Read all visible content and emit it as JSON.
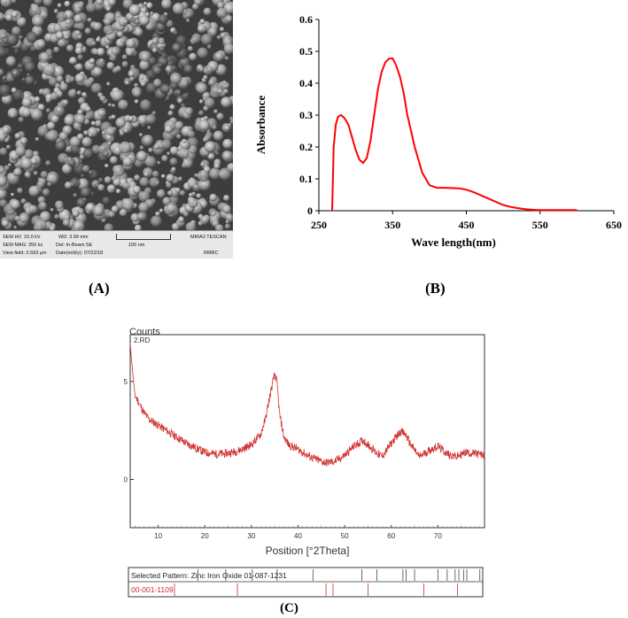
{
  "panels": {
    "a": "(A)",
    "b": "(B)",
    "c": "(C)"
  },
  "sem": {
    "hv": "SEM HV: 15.0 kV",
    "wd": "WD: 3.99 mm",
    "mag": "SEM MAG: 350 kx",
    "det": "Det: In-Beam SE",
    "scale": "100 nm",
    "view": "View field: 0.593 µm",
    "date": "Date(m/d/y): 07/22/18",
    "instrument": "MIRA3 TESCAN",
    "lab": "RMRC"
  },
  "chart_data": [
    {
      "type": "line",
      "id": "uv-vis",
      "xlabel": "Wave length(nm)",
      "ylabel": "Absorbance",
      "xlim": [
        250,
        650
      ],
      "ylim": [
        0,
        0.6
      ],
      "xticks": [
        "250",
        "350",
        "450",
        "550",
        "650"
      ],
      "yticks": [
        "0",
        "0.1",
        "0.2",
        "0.3",
        "0.4",
        "0.5",
        "0.6"
      ],
      "color": "#ff0000",
      "grid": false,
      "x": [
        268,
        270,
        273,
        276,
        280,
        285,
        290,
        295,
        300,
        305,
        310,
        315,
        320,
        325,
        330,
        335,
        340,
        345,
        350,
        355,
        360,
        365,
        370,
        375,
        380,
        390,
        400,
        410,
        420,
        430,
        440,
        450,
        460,
        470,
        480,
        490,
        500,
        510,
        520,
        530,
        540,
        550,
        575,
        600
      ],
      "y": [
        0.0,
        0.2,
        0.27,
        0.295,
        0.3,
        0.29,
        0.27,
        0.23,
        0.19,
        0.16,
        0.15,
        0.165,
        0.22,
        0.3,
        0.38,
        0.435,
        0.465,
        0.477,
        0.478,
        0.455,
        0.42,
        0.37,
        0.3,
        0.25,
        0.2,
        0.12,
        0.08,
        0.072,
        0.072,
        0.071,
        0.07,
        0.066,
        0.058,
        0.048,
        0.038,
        0.028,
        0.018,
        0.012,
        0.008,
        0.005,
        0.003,
        0.002,
        0.002,
        0.002
      ]
    },
    {
      "type": "line",
      "id": "xrd",
      "ylabel": "Counts",
      "xlabel": "Position [°2Theta]",
      "series_name": "2.RD",
      "xlim": [
        4,
        80
      ],
      "ylim": [
        740,
        1380
      ],
      "xticks": [
        10,
        20,
        30,
        40,
        50,
        60,
        70
      ],
      "yticks": [
        900,
        1225
      ],
      "color": "#d03030",
      "noise_amplitude": 28,
      "x": [
        4,
        4.5,
        5,
        6,
        7,
        8,
        10,
        12,
        14,
        16,
        18,
        20,
        22,
        24,
        26,
        28,
        30,
        32,
        33,
        34,
        35,
        35.5,
        36,
        37,
        38,
        40,
        42,
        44,
        46,
        48,
        50,
        52,
        54,
        56,
        58,
        60,
        62,
        63,
        64,
        66,
        68,
        70,
        72,
        74,
        76,
        78,
        80
      ],
      "y": [
        1350,
        1260,
        1180,
        1150,
        1120,
        1100,
        1080,
        1060,
        1040,
        1020,
        1005,
        990,
        985,
        985,
        990,
        1000,
        1015,
        1050,
        1100,
        1180,
        1250,
        1220,
        1120,
        1040,
        1015,
        1000,
        980,
        965,
        955,
        960,
        980,
        1010,
        1030,
        1000,
        975,
        1020,
        1060,
        1050,
        1020,
        975,
        995,
        1010,
        985,
        975,
        990,
        985,
        980
      ]
    }
  ],
  "legend_table": {
    "row1": "Selected Pattern: Zinc Iron Oxide  01-087-1231",
    "row2": "00-001-1109",
    "row1_ticks": [
      18.5,
      24.5,
      30.2,
      35.5,
      43.2,
      53.7,
      56.9,
      62.5,
      63.2,
      65.0,
      70.0,
      72.0,
      73.7,
      74.5,
      75.5,
      76.2,
      79.0
    ],
    "row2_ticks": [
      13.5,
      27.0,
      46.0,
      47.5,
      55.0,
      67.0,
      74.2
    ],
    "row1_color": "#444444",
    "row2_color": "#cc2a2a"
  }
}
